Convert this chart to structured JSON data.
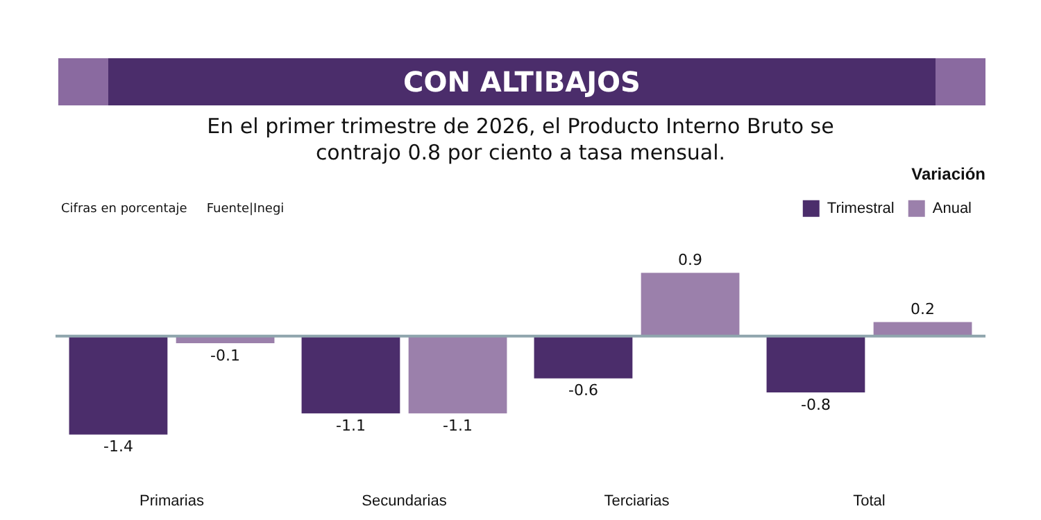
{
  "chart_data": {
    "type": "bar",
    "title": "CON ALTIBAJOS",
    "subtitle": "En el primer trimestre de 2026, el Producto Interno Bruto se contrajo 0.8 por ciento a tasa mensual.",
    "annotations": [
      "Cifras en porcentaje",
      "Fuente|Inegi"
    ],
    "legend_title": "Variación",
    "legend": "top right",
    "data_labels": true,
    "categories": [
      "Primarias",
      "Secundarias",
      "Terciarias",
      "Total"
    ],
    "series": [
      {
        "name": "Trimestral",
        "color": "#4b2d6b",
        "values": [
          -1.4,
          -1.1,
          -0.6,
          -0.8
        ]
      },
      {
        "name": "Anual",
        "color": "#9b80ab",
        "values": [
          -0.1,
          -1.1,
          0.9,
          0.2
        ]
      }
    ]
  }
}
